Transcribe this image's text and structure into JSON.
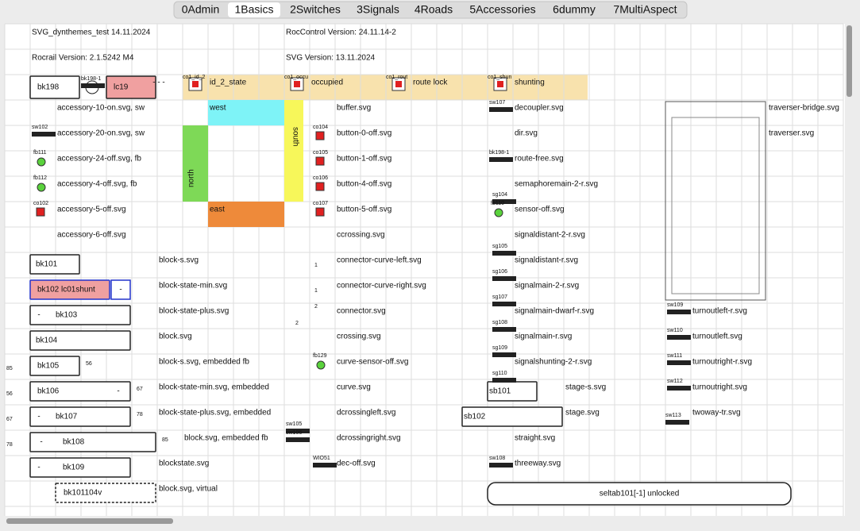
{
  "tabs": [
    "0Admin",
    "1Basics",
    "2Switches",
    "3Signals",
    "4Roads",
    "5Accessories",
    "6dummy",
    "7MultiAspect"
  ],
  "info": [
    "SVG_dynthemes_test 14.11.2024",
    "RocControl Version: 24.11.14-2",
    "Rocrail Version: 2.1.5242 M4",
    "SVG Version: 13.11.2024"
  ],
  "states": [
    "id_2_state",
    "occupied",
    "route lock",
    "shunting"
  ],
  "zones": [
    "west",
    "east",
    "north",
    "south"
  ],
  "labels": [
    "accessory-10-on.svg, sw",
    "accessory-20-on.svg, sw",
    "accessory-24-off.svg, fb",
    "accessory-4-off.svg, fb",
    "accessory-5-off.svg",
    "accessory-6-off.svg",
    "block-s.svg",
    "block-state-min.svg",
    "block-state-plus.svg",
    "block.svg",
    "block-s.svg, embedded fb",
    "block-state-min.svg, embedded",
    "block-state-plus.svg, embedded",
    "block.svg, embedded fb",
    "blockstate.svg",
    "block.svg, virtual",
    "buffer.svg",
    "button-0-off.svg",
    "button-1-off.svg",
    "button-4-off.svg",
    "button-5-off.svg",
    "ccrossing.svg",
    "connector-curve-left.svg",
    "connector-curve-right.svg",
    "connector.svg",
    "crossing.svg",
    "curve-sensor-off.svg",
    "curve.svg",
    "dcrossingleft.svg",
    "dcrossingright.svg",
    "dec-off.svg",
    "decoupler.svg",
    "dir.svg",
    "route-free.svg",
    "semaphoremain-2-r.svg",
    "sensor-off.svg",
    "signaldistant-2-r.svg",
    "signaldistant-r.svg",
    "signalmain-2-r.svg",
    "signalmain-dwarf-r.svg",
    "signalmain-r.svg",
    "signalshunting-2-r.svg",
    "stage-s.svg",
    "stage.svg",
    "straight.svg",
    "threeway.svg",
    "turnoutleft-r.svg",
    "turnoutleft.svg",
    "turnoutright-r.svg",
    "turnoutright.svg",
    "twoway-tr.svg",
    "traverser-bridge.svg",
    "traverser.svg"
  ],
  "blocks": [
    "bk198",
    "lc19",
    "bk101",
    "bk102 lc01shunt",
    "bk103",
    "bk104",
    "bk105",
    "bk106",
    "bk107",
    "bk108",
    "bk109",
    "bk101104v",
    "sb101",
    "sb102",
    "seltab101[-1] unlocked"
  ],
  "tags": [
    "co1_id_2",
    "co1_occu",
    "co1_rout",
    "co1_shun",
    "bk198-1",
    "sw102",
    "fb111",
    "fb112",
    "co102",
    "co104",
    "co105",
    "co106",
    "co107",
    "fb129",
    "sw105",
    "sw106",
    "WIO51",
    "sw107",
    "bk198-1",
    "sg104",
    "fb110",
    "sg105",
    "sg106",
    "sg107",
    "sg108",
    "sg109",
    "sg110",
    "sw108",
    "sw109",
    "sw110",
    "sw111",
    "sw112",
    "sw113"
  ],
  "marks": [
    "- - -",
    "-",
    "-",
    "-",
    "-",
    "-",
    "-"
  ],
  "numbers": [
    85,
    56,
    56,
    67,
    67,
    78,
    78,
    85,
    1,
    1,
    2,
    2
  ]
}
